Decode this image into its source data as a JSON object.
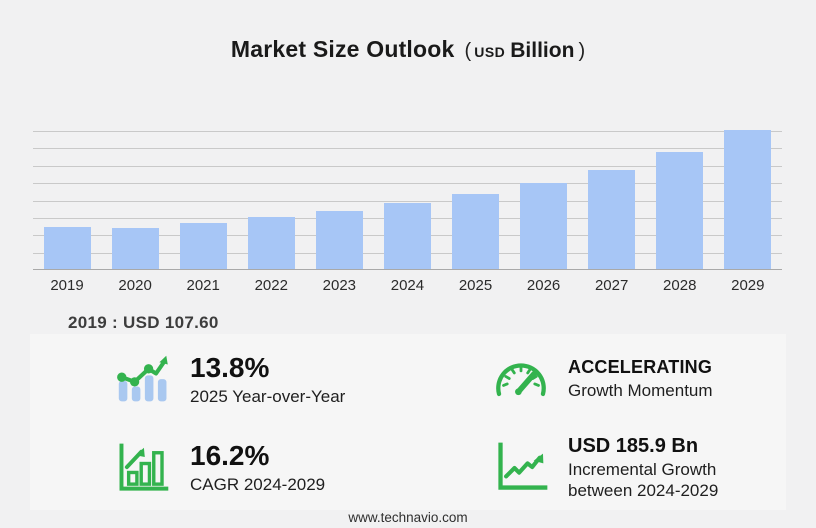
{
  "title": {
    "main": "Market Size Outlook",
    "paren_open": "(",
    "unit_small": "USD",
    "unit_big": "Billion",
    "paren_close": ")"
  },
  "chart_data": {
    "type": "bar",
    "title": "Market Size Outlook (USD Billion)",
    "categories": [
      "2019",
      "2020",
      "2021",
      "2022",
      "2023",
      "2024",
      "2025",
      "2026",
      "2027",
      "2028",
      "2029"
    ],
    "values": [
      107.6,
      104.5,
      116.7,
      132.8,
      146.9,
      166.1,
      189.0,
      216.7,
      252.0,
      296.6,
      352.0
    ],
    "xlabel": "",
    "ylabel": "USD Billion",
    "ylim": [
      0,
      352
    ],
    "grid": true,
    "gridline_count": 8,
    "legend": "none",
    "bar_color": "#a7c6f6"
  },
  "annotation_2019": "2019 : USD  107.60",
  "stats": [
    {
      "icon": "bar-chart-trend-icon",
      "value": "13.8%",
      "label": "2025 Year-over-Year"
    },
    {
      "icon": "speedometer-icon",
      "value": "ACCELERATING",
      "label": "Growth Momentum"
    },
    {
      "icon": "framed-growth-bars-icon",
      "value": "16.2%",
      "label": "CAGR 2024-2029"
    },
    {
      "icon": "axis-growth-arrow-icon",
      "value": "USD 185.9 Bn",
      "label": "Incremental Growth between 2024-2029"
    }
  ],
  "footer": {
    "website": "www.technavio.com"
  },
  "colors": {
    "background": "#f1f1f2",
    "panel": "#f6f6f6",
    "bar": "#a7c6f6",
    "icon_bar_blue": "#a9c8f0",
    "green": "#33b34e",
    "gridline": "#c9c9c9",
    "axis": "#a9a9a9"
  }
}
